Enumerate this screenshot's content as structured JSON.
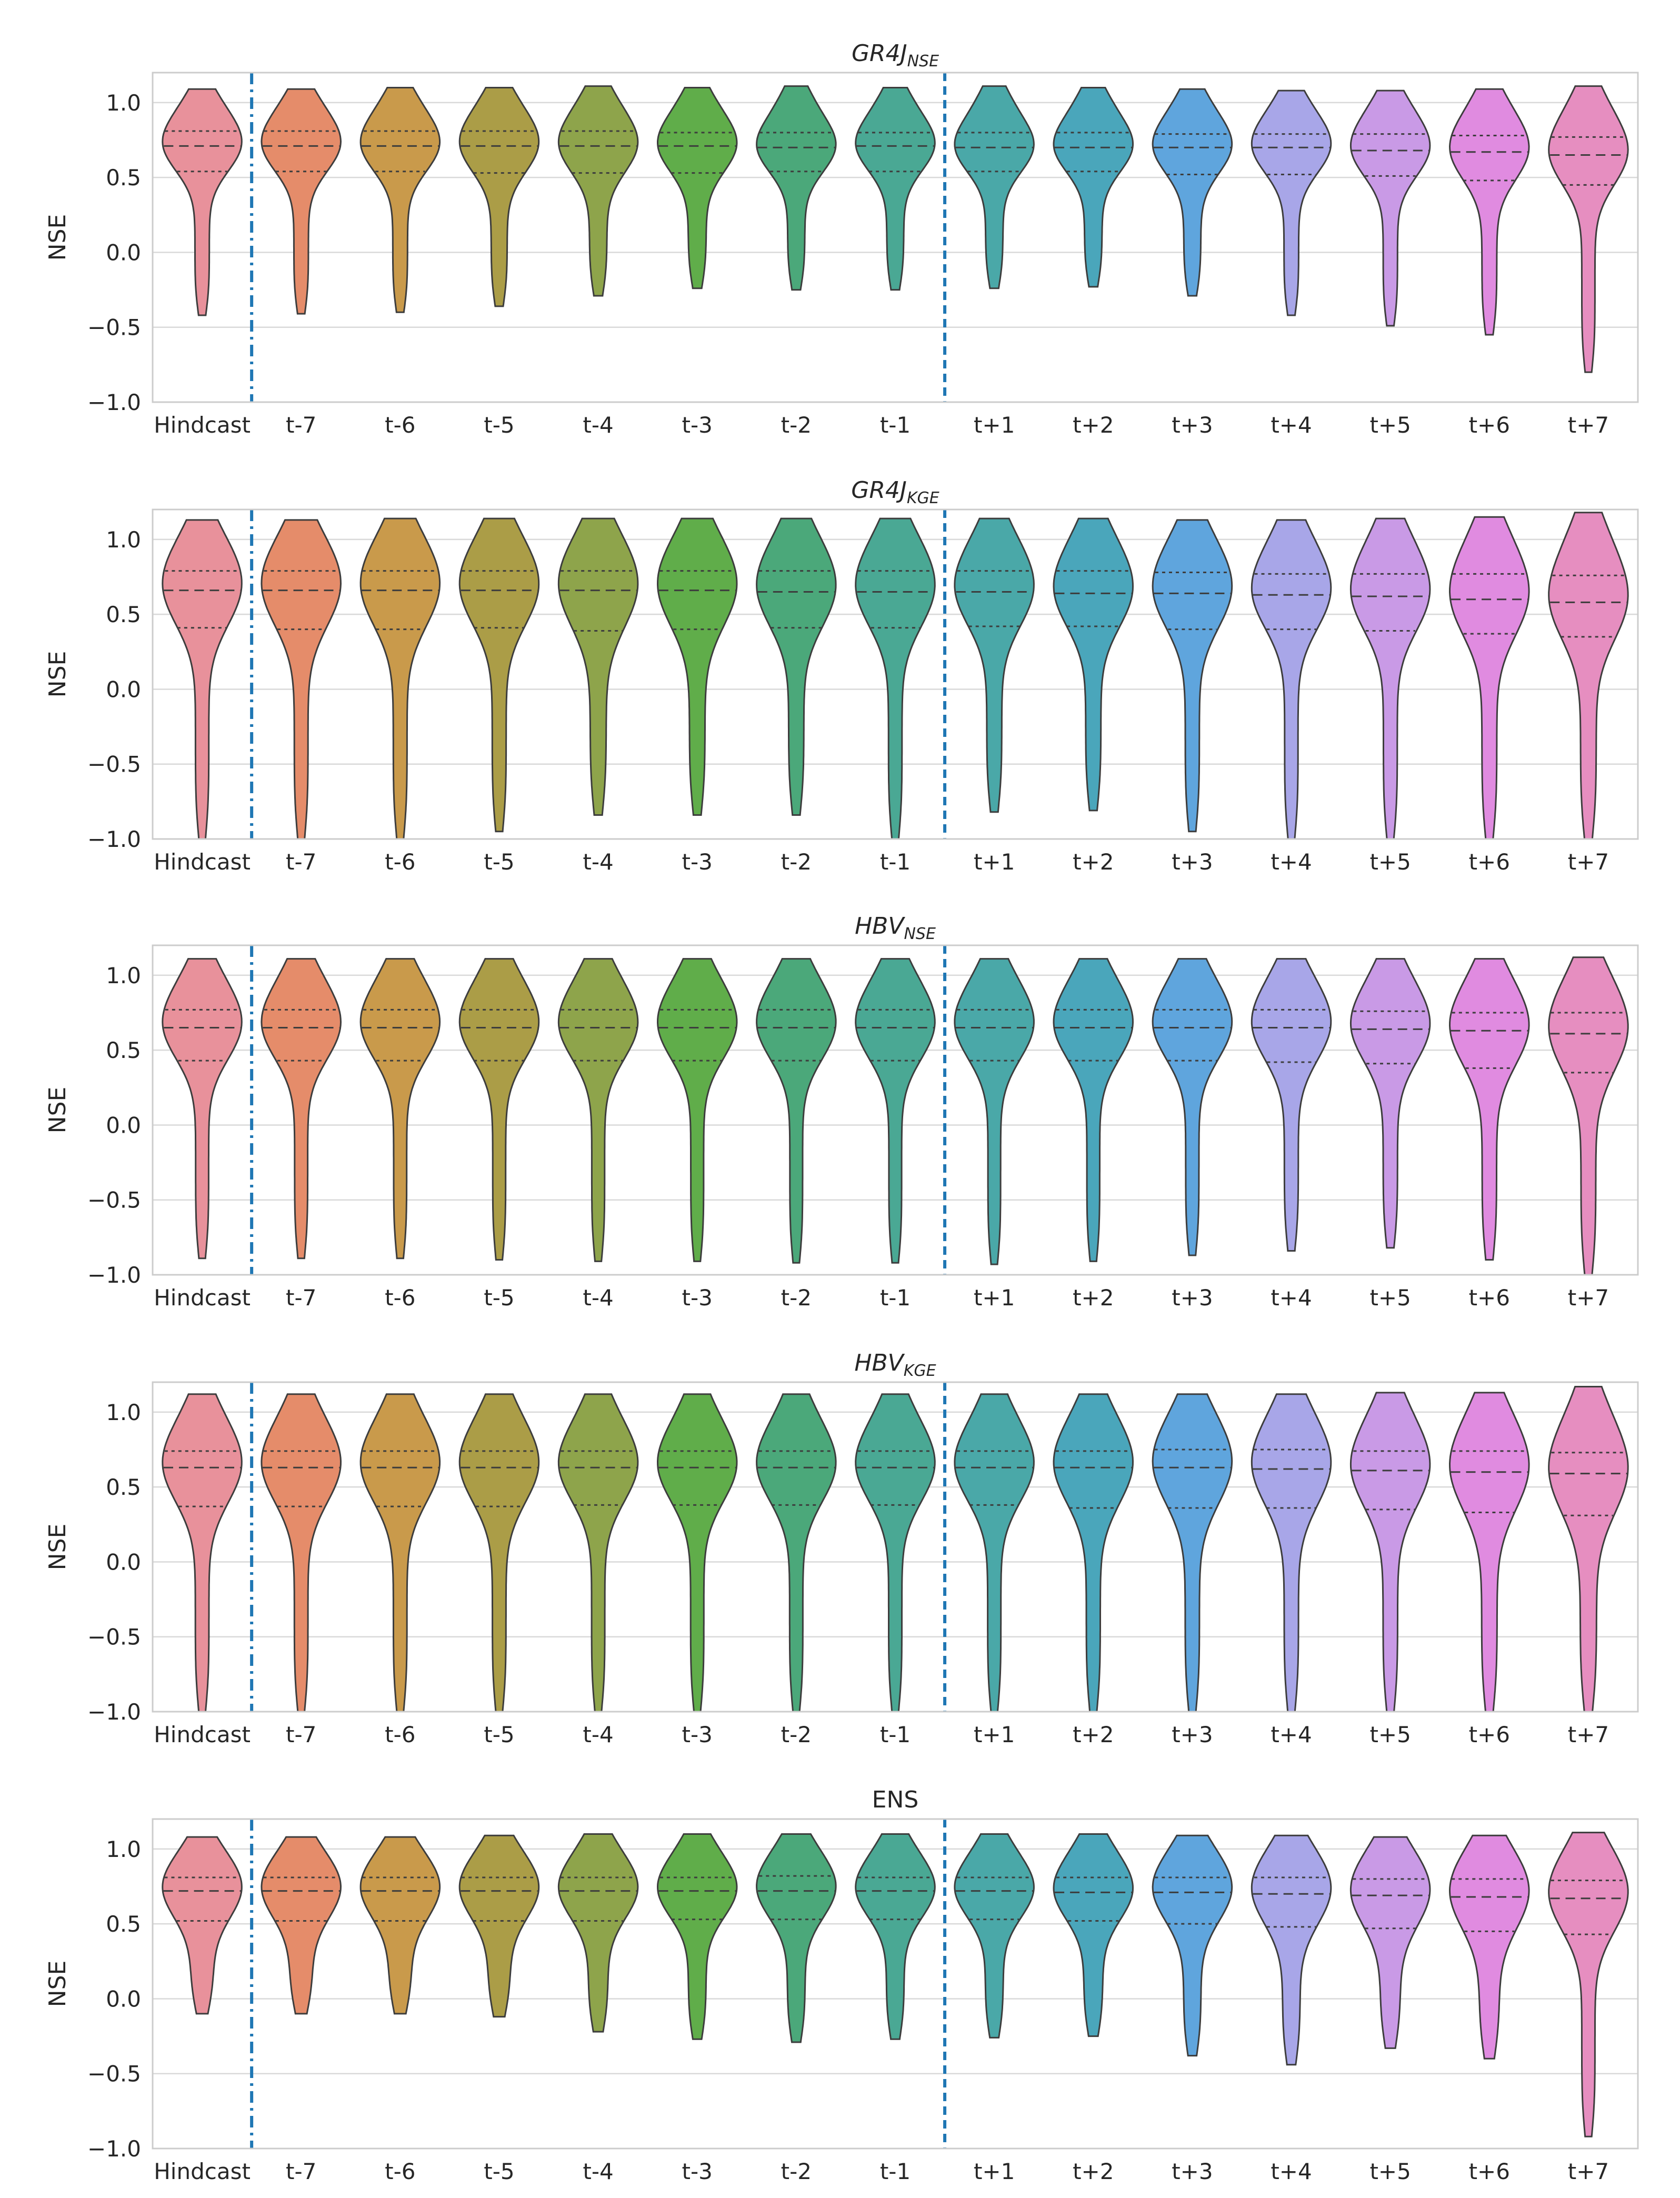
{
  "chart_data": [
    {
      "type": "violin",
      "title": "GR4J",
      "title_subscript": "NSE",
      "ylabel": "NSE",
      "ylim": [
        -1.0,
        1.2
      ],
      "yticks": [
        1.0,
        0.5,
        0.0,
        -0.5,
        -1.0
      ],
      "ytick_labels": [
        "1.0",
        "0.5",
        "0.0",
        "−0.5",
        "−1.0"
      ],
      "categories": [
        "Hindcast",
        "t-7",
        "t-6",
        "t-5",
        "t-4",
        "t-3",
        "t-2",
        "t-1",
        "t+1",
        "t+2",
        "t+3",
        "t+4",
        "t+5",
        "t+6",
        "t+7"
      ],
      "separators": {
        "dashdot_after": "Hindcast",
        "dashed_after": "t-1"
      },
      "grid": true,
      "min": [
        -0.42,
        -0.41,
        -0.4,
        -0.36,
        -0.29,
        -0.24,
        -0.25,
        -0.25,
        -0.24,
        -0.23,
        -0.29,
        -0.42,
        -0.49,
        -0.55,
        -0.8
      ],
      "max": [
        1.09,
        1.09,
        1.1,
        1.1,
        1.11,
        1.1,
        1.11,
        1.1,
        1.11,
        1.1,
        1.09,
        1.08,
        1.08,
        1.09,
        1.11
      ],
      "q1": [
        0.54,
        0.54,
        0.54,
        0.53,
        0.53,
        0.53,
        0.54,
        0.54,
        0.54,
        0.54,
        0.52,
        0.52,
        0.51,
        0.48,
        0.45
      ],
      "median": [
        0.71,
        0.71,
        0.71,
        0.71,
        0.71,
        0.71,
        0.7,
        0.71,
        0.7,
        0.7,
        0.7,
        0.7,
        0.68,
        0.67,
        0.65
      ],
      "q3": [
        0.81,
        0.81,
        0.81,
        0.81,
        0.81,
        0.8,
        0.8,
        0.8,
        0.8,
        0.8,
        0.79,
        0.79,
        0.79,
        0.78,
        0.77
      ]
    },
    {
      "type": "violin",
      "title": "GR4J",
      "title_subscript": "KGE",
      "ylabel": "NSE",
      "ylim": [
        -1.0,
        1.2
      ],
      "yticks": [
        1.0,
        0.5,
        0.0,
        -0.5,
        -1.0
      ],
      "ytick_labels": [
        "1.0",
        "0.5",
        "0.0",
        "−0.5",
        "−1.0"
      ],
      "categories": [
        "Hindcast",
        "t-7",
        "t-6",
        "t-5",
        "t-4",
        "t-3",
        "t-2",
        "t-1",
        "t+1",
        "t+2",
        "t+3",
        "t+4",
        "t+5",
        "t+6",
        "t+7"
      ],
      "separators": {
        "dashdot_after": "Hindcast",
        "dashed_after": "t-1"
      },
      "grid": true,
      "min": [
        -1.0,
        -1.0,
        -1.0,
        -0.95,
        -0.84,
        -0.84,
        -0.84,
        -1.0,
        -0.82,
        -0.81,
        -0.95,
        -1.0,
        -1.0,
        -1.0,
        -1.0
      ],
      "max": [
        1.13,
        1.13,
        1.14,
        1.14,
        1.14,
        1.14,
        1.14,
        1.14,
        1.14,
        1.14,
        1.13,
        1.13,
        1.14,
        1.15,
        1.18
      ],
      "q1": [
        0.41,
        0.4,
        0.4,
        0.41,
        0.39,
        0.4,
        0.41,
        0.41,
        0.42,
        0.42,
        0.4,
        0.4,
        0.39,
        0.37,
        0.35
      ],
      "median": [
        0.66,
        0.66,
        0.66,
        0.66,
        0.66,
        0.66,
        0.65,
        0.65,
        0.65,
        0.64,
        0.64,
        0.63,
        0.62,
        0.6,
        0.58
      ],
      "q3": [
        0.79,
        0.79,
        0.79,
        0.79,
        0.79,
        0.79,
        0.79,
        0.79,
        0.79,
        0.79,
        0.78,
        0.77,
        0.77,
        0.77,
        0.76
      ]
    },
    {
      "type": "violin",
      "title": "HBV",
      "title_subscript": "NSE",
      "ylabel": "NSE",
      "ylim": [
        -1.0,
        1.2
      ],
      "yticks": [
        1.0,
        0.5,
        0.0,
        -0.5,
        -1.0
      ],
      "ytick_labels": [
        "1.0",
        "0.5",
        "0.0",
        "−0.5",
        "−1.0"
      ],
      "categories": [
        "Hindcast",
        "t-7",
        "t-6",
        "t-5",
        "t-4",
        "t-3",
        "t-2",
        "t-1",
        "t+1",
        "t+2",
        "t+3",
        "t+4",
        "t+5",
        "t+6",
        "t+7"
      ],
      "separators": {
        "dashdot_after": "Hindcast",
        "dashed_after": "t-1"
      },
      "grid": true,
      "min": [
        -0.89,
        -0.89,
        -0.89,
        -0.9,
        -0.91,
        -0.91,
        -0.92,
        -0.92,
        -0.93,
        -0.91,
        -0.87,
        -0.84,
        -0.82,
        -0.9,
        -1.0
      ],
      "max": [
        1.11,
        1.11,
        1.11,
        1.11,
        1.11,
        1.11,
        1.11,
        1.11,
        1.11,
        1.11,
        1.11,
        1.11,
        1.11,
        1.11,
        1.12
      ],
      "q1": [
        0.43,
        0.43,
        0.43,
        0.43,
        0.43,
        0.43,
        0.43,
        0.43,
        0.43,
        0.43,
        0.43,
        0.42,
        0.41,
        0.38,
        0.35
      ],
      "median": [
        0.65,
        0.65,
        0.65,
        0.65,
        0.65,
        0.65,
        0.65,
        0.65,
        0.65,
        0.65,
        0.65,
        0.65,
        0.64,
        0.63,
        0.61
      ],
      "q3": [
        0.77,
        0.77,
        0.77,
        0.77,
        0.77,
        0.77,
        0.77,
        0.77,
        0.77,
        0.77,
        0.77,
        0.77,
        0.76,
        0.75,
        0.75
      ]
    },
    {
      "type": "violin",
      "title": "HBV",
      "title_subscript": "KGE",
      "ylabel": "NSE",
      "ylim": [
        -1.0,
        1.2
      ],
      "yticks": [
        1.0,
        0.5,
        0.0,
        -0.5,
        -1.0
      ],
      "ytick_labels": [
        "1.0",
        "0.5",
        "0.0",
        "−0.5",
        "−1.0"
      ],
      "categories": [
        "Hindcast",
        "t-7",
        "t-6",
        "t-5",
        "t-4",
        "t-3",
        "t-2",
        "t-1",
        "t+1",
        "t+2",
        "t+3",
        "t+4",
        "t+5",
        "t+6",
        "t+7"
      ],
      "separators": {
        "dashdot_after": "Hindcast",
        "dashed_after": "t-1"
      },
      "grid": true,
      "min": [
        -1.0,
        -1.0,
        -1.0,
        -1.0,
        -1.0,
        -1.0,
        -1.0,
        -1.0,
        -1.0,
        -1.0,
        -1.0,
        -1.0,
        -1.0,
        -1.0,
        -1.0
      ],
      "max": [
        1.12,
        1.12,
        1.12,
        1.12,
        1.12,
        1.12,
        1.12,
        1.12,
        1.12,
        1.12,
        1.12,
        1.12,
        1.13,
        1.13,
        1.17
      ],
      "q1": [
        0.37,
        0.37,
        0.37,
        0.37,
        0.38,
        0.38,
        0.38,
        0.38,
        0.38,
        0.36,
        0.36,
        0.36,
        0.35,
        0.33,
        0.31
      ],
      "median": [
        0.63,
        0.63,
        0.63,
        0.63,
        0.63,
        0.63,
        0.63,
        0.63,
        0.63,
        0.63,
        0.63,
        0.62,
        0.61,
        0.6,
        0.59
      ],
      "q3": [
        0.74,
        0.74,
        0.74,
        0.74,
        0.74,
        0.74,
        0.74,
        0.74,
        0.74,
        0.74,
        0.75,
        0.75,
        0.74,
        0.74,
        0.73
      ]
    },
    {
      "type": "violin",
      "title": "ENS",
      "title_subscript": "",
      "ylabel": "NSE",
      "ylim": [
        -1.0,
        1.2
      ],
      "yticks": [
        1.0,
        0.5,
        0.0,
        -0.5,
        -1.0
      ],
      "ytick_labels": [
        "1.0",
        "0.5",
        "0.0",
        "−0.5",
        "−1.0"
      ],
      "categories": [
        "Hindcast",
        "t-7",
        "t-6",
        "t-5",
        "t-4",
        "t-3",
        "t-2",
        "t-1",
        "t+1",
        "t+2",
        "t+3",
        "t+4",
        "t+5",
        "t+6",
        "t+7"
      ],
      "separators": {
        "dashdot_after": "Hindcast",
        "dashed_after": "t-1"
      },
      "grid": true,
      "min": [
        -0.1,
        -0.1,
        -0.1,
        -0.12,
        -0.22,
        -0.27,
        -0.29,
        -0.27,
        -0.26,
        -0.25,
        -0.38,
        -0.44,
        -0.33,
        -0.4,
        -0.92
      ],
      "max": [
        1.08,
        1.08,
        1.08,
        1.09,
        1.1,
        1.1,
        1.1,
        1.1,
        1.1,
        1.1,
        1.09,
        1.09,
        1.08,
        1.09,
        1.11
      ],
      "q1": [
        0.52,
        0.52,
        0.52,
        0.52,
        0.52,
        0.53,
        0.53,
        0.53,
        0.53,
        0.52,
        0.5,
        0.48,
        0.47,
        0.45,
        0.43
      ],
      "median": [
        0.72,
        0.72,
        0.72,
        0.72,
        0.72,
        0.72,
        0.72,
        0.72,
        0.72,
        0.71,
        0.71,
        0.7,
        0.69,
        0.68,
        0.67
      ],
      "q3": [
        0.81,
        0.81,
        0.81,
        0.81,
        0.81,
        0.81,
        0.82,
        0.81,
        0.81,
        0.81,
        0.81,
        0.81,
        0.8,
        0.8,
        0.79
      ]
    }
  ],
  "colors": {
    "violins": [
      "#e8919b",
      "#e58c6a",
      "#c99a4b",
      "#ab9d47",
      "#8ea44b",
      "#60ad4a",
      "#4ba87a",
      "#4aa894",
      "#4aa8a8",
      "#4aa6bb",
      "#5fa5dd",
      "#a8a6e8",
      "#c99ae6",
      "#e08be0",
      "#e68ec0"
    ],
    "outline": "#3d3d3d",
    "separator": "#1f77b4",
    "grid": "#d9d9d9",
    "frame": "#cccccc",
    "text": "#262626"
  }
}
